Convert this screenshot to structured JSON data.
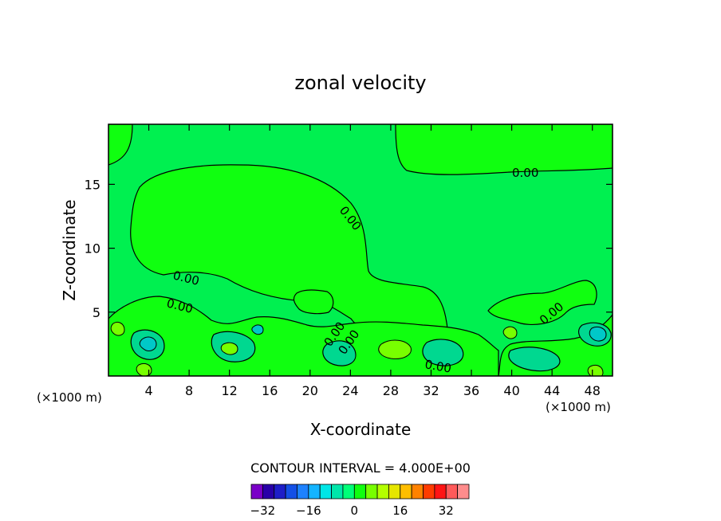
{
  "chart_data": {
    "type": "contour",
    "title": "zonal velocity",
    "xlabel": "X-coordinate",
    "ylabel": "Z-coordinate",
    "x_unit_left": "(×1000 m)",
    "x_unit_right": "(×1000 m)",
    "xlim": [
      0,
      50
    ],
    "ylim": [
      0,
      19.7
    ],
    "x_ticks": [
      4,
      8,
      12,
      16,
      20,
      24,
      28,
      32,
      36,
      40,
      44,
      48
    ],
    "y_ticks": [
      5,
      10,
      15
    ],
    "contour_labels": [
      "0.00",
      "0.00",
      "0.00",
      "0.00",
      "0.00",
      "0.00",
      "0.00",
      "0.00"
    ],
    "contour_interval_text": "CONTOUR INTERVAL = 4.000E+00",
    "colorbar": {
      "colors": [
        "#7a00c8",
        "#2800a8",
        "#1e1ec8",
        "#1450e6",
        "#1e82ff",
        "#14b4ff",
        "#00e6e6",
        "#00e6aa",
        "#00ff78",
        "#10ff10",
        "#78ff00",
        "#b4ff00",
        "#e6e600",
        "#ffbe00",
        "#ff8200",
        "#ff3c00",
        "#ff1414",
        "#ff5a5a",
        "#ff8c8c"
      ],
      "tick_labels": [
        "−32",
        "−16",
        "0",
        "16",
        "32"
      ],
      "tick_values": [
        -32,
        -16,
        0,
        16,
        32
      ]
    },
    "colors": {
      "background_field": "#00f050",
      "positive_field": "#10ff10",
      "strong_positive": "#78ff00",
      "negative_field": "#00d890",
      "strong_negative": "#00c8c8"
    }
  }
}
